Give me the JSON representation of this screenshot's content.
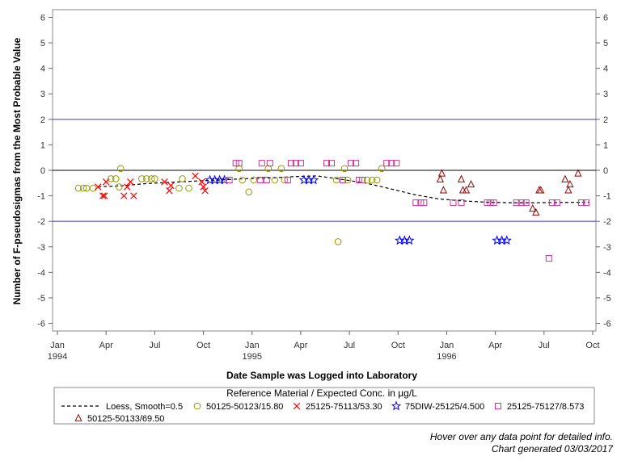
{
  "chart_data": {
    "type": "scatter",
    "xlabel": "Date Sample was Logged into Laboratory",
    "ylabel": "Number of F-pseudosigmas from the Most Probable Value",
    "ylim": [
      -6.3,
      6.3
    ],
    "yticks": [
      -6,
      -5,
      -4,
      -3,
      -2,
      -1,
      0,
      1,
      2,
      3,
      4,
      5,
      6
    ],
    "xlim": [
      -0.3,
      33.2
    ],
    "xticks": [
      {
        "x": 0,
        "label": "Jan",
        "year": "1994"
      },
      {
        "x": 3,
        "label": "Apr",
        "year": ""
      },
      {
        "x": 6,
        "label": "Jul",
        "year": ""
      },
      {
        "x": 9,
        "label": "Oct",
        "year": ""
      },
      {
        "x": 12,
        "label": "Jan",
        "year": "1995"
      },
      {
        "x": 15,
        "label": "Apr",
        "year": ""
      },
      {
        "x": 18,
        "label": "Jul",
        "year": ""
      },
      {
        "x": 21,
        "label": "Oct",
        "year": ""
      },
      {
        "x": 24,
        "label": "Jan",
        "year": "1996"
      },
      {
        "x": 27,
        "label": "Apr",
        "year": ""
      },
      {
        "x": 30,
        "label": "Jul",
        "year": ""
      },
      {
        "x": 33,
        "label": "Oct",
        "year": ""
      }
    ],
    "reference_lines": [
      {
        "y": 2,
        "color": "#3333cc"
      },
      {
        "y": 0,
        "color": "#000000"
      },
      {
        "y": -2,
        "color": "#3333cc"
      }
    ],
    "grid": false,
    "legend": {
      "title": "Reference Material / Expected Conc. in µg/L",
      "position": "bottom"
    },
    "loess": {
      "name": "Loess, Smooth=0.5",
      "color": "#000000",
      "points": [
        [
          2.5,
          -0.65
        ],
        [
          4,
          -0.6
        ],
        [
          5.5,
          -0.52
        ],
        [
          7,
          -0.47
        ],
        [
          8.5,
          -0.42
        ],
        [
          10,
          -0.38
        ],
        [
          11.5,
          -0.33
        ],
        [
          13,
          -0.3
        ],
        [
          14.5,
          -0.25
        ],
        [
          16,
          -0.22
        ],
        [
          17.5,
          -0.35
        ],
        [
          19,
          -0.5
        ],
        [
          20.5,
          -0.72
        ],
        [
          22,
          -0.95
        ],
        [
          23.5,
          -1.12
        ],
        [
          25,
          -1.2
        ],
        [
          26.5,
          -1.25
        ],
        [
          28,
          -1.27
        ],
        [
          29.5,
          -1.27
        ],
        [
          31,
          -1.26
        ],
        [
          32.8,
          -1.25
        ]
      ]
    },
    "series": [
      {
        "name": "50125-50123/15.80",
        "marker": "circle",
        "color": "#999900",
        "points": [
          [
            1.3,
            -0.7
          ],
          [
            1.6,
            -0.7
          ],
          [
            1.8,
            -0.7
          ],
          [
            2.2,
            -0.7
          ],
          [
            3.3,
            -0.33
          ],
          [
            3.6,
            -0.33
          ],
          [
            3.8,
            -0.65
          ],
          [
            3.9,
            0.07
          ],
          [
            5.2,
            -0.33
          ],
          [
            5.5,
            -0.33
          ],
          [
            5.8,
            -0.33
          ],
          [
            6.0,
            -0.33
          ],
          [
            7.5,
            -0.7
          ],
          [
            7.7,
            -0.33
          ],
          [
            8.1,
            -0.7
          ],
          [
            11.2,
            0.07
          ],
          [
            11.4,
            -0.38
          ],
          [
            11.8,
            -0.85
          ],
          [
            12.1,
            -0.38
          ],
          [
            13.0,
            0.07
          ],
          [
            13.4,
            -0.38
          ],
          [
            13.8,
            0.07
          ],
          [
            14.0,
            -0.38
          ],
          [
            17.2,
            -0.38
          ],
          [
            17.3,
            -2.8
          ],
          [
            17.7,
            0.07
          ],
          [
            17.9,
            -0.38
          ],
          [
            19.1,
            -0.38
          ],
          [
            19.4,
            -0.38
          ],
          [
            19.7,
            -0.38
          ],
          [
            20.0,
            0.07
          ]
        ]
      },
      {
        "name": "25125-75113/53.30",
        "marker": "x",
        "color": "#ff0000",
        "points": [
          [
            2.5,
            -0.65
          ],
          [
            2.8,
            -1.0
          ],
          [
            2.9,
            -1.0
          ],
          [
            3.0,
            -0.45
          ],
          [
            4.1,
            -1.0
          ],
          [
            4.3,
            -0.65
          ],
          [
            4.5,
            -0.45
          ],
          [
            4.7,
            -1.0
          ],
          [
            6.6,
            -0.45
          ],
          [
            6.9,
            -0.8
          ],
          [
            7.0,
            -0.6
          ],
          [
            8.5,
            -0.22
          ],
          [
            8.9,
            -0.45
          ],
          [
            9.0,
            -0.65
          ],
          [
            9.1,
            -0.8
          ]
        ]
      },
      {
        "name": "75DIW-25125/4.500",
        "marker": "star",
        "color": "#0000ff",
        "points": [
          [
            9.4,
            -0.38
          ],
          [
            9.7,
            -0.38
          ],
          [
            10.0,
            -0.38
          ],
          [
            10.3,
            -0.38
          ],
          [
            15.2,
            -0.38
          ],
          [
            15.5,
            -0.38
          ],
          [
            15.8,
            -0.38
          ],
          [
            21.1,
            -2.75
          ],
          [
            21.4,
            -2.75
          ],
          [
            21.7,
            -2.75
          ],
          [
            27.1,
            -2.75
          ],
          [
            27.4,
            -2.75
          ],
          [
            27.7,
            -2.75
          ]
        ]
      },
      {
        "name": "25125-75127/8.573",
        "marker": "square",
        "color": "#cc3399",
        "points": [
          [
            10.6,
            -0.38
          ],
          [
            11.0,
            0.28
          ],
          [
            11.2,
            0.28
          ],
          [
            12.5,
            -0.38
          ],
          [
            12.6,
            0.28
          ],
          [
            12.9,
            -0.38
          ],
          [
            13.1,
            0.28
          ],
          [
            14.2,
            -0.38
          ],
          [
            14.4,
            0.28
          ],
          [
            14.7,
            0.28
          ],
          [
            15.0,
            0.28
          ],
          [
            16.6,
            0.28
          ],
          [
            16.9,
            0.28
          ],
          [
            17.6,
            -0.38
          ],
          [
            18.1,
            0.28
          ],
          [
            18.4,
            0.28
          ],
          [
            18.6,
            -0.38
          ],
          [
            18.8,
            -0.38
          ],
          [
            20.3,
            0.28
          ],
          [
            20.6,
            0.28
          ],
          [
            20.9,
            0.28
          ],
          [
            22.1,
            -1.27
          ],
          [
            22.4,
            -1.27
          ],
          [
            22.6,
            -1.27
          ],
          [
            24.4,
            -1.27
          ],
          [
            24.9,
            -1.27
          ],
          [
            26.5,
            -1.27
          ],
          [
            26.7,
            -1.27
          ],
          [
            26.9,
            -1.27
          ],
          [
            28.3,
            -1.27
          ],
          [
            28.6,
            -1.27
          ],
          [
            28.9,
            -1.27
          ],
          [
            30.3,
            -3.45
          ],
          [
            30.5,
            -1.27
          ],
          [
            30.8,
            -1.27
          ],
          [
            32.3,
            -1.27
          ],
          [
            32.6,
            -1.27
          ]
        ]
      },
      {
        "name": "50125-50133/69.50",
        "marker": "triangle",
        "color": "#990000",
        "points": [
          [
            23.6,
            -0.35
          ],
          [
            23.7,
            -0.12
          ],
          [
            23.8,
            -0.78
          ],
          [
            24.9,
            -0.35
          ],
          [
            25.0,
            -0.78
          ],
          [
            25.2,
            -0.78
          ],
          [
            25.5,
            -0.55
          ],
          [
            29.3,
            -1.5
          ],
          [
            29.5,
            -1.65
          ],
          [
            29.7,
            -0.78
          ],
          [
            29.8,
            -0.78
          ],
          [
            31.3,
            -0.35
          ],
          [
            31.5,
            -0.78
          ],
          [
            31.6,
            -0.55
          ],
          [
            32.1,
            -0.12
          ]
        ]
      }
    ]
  },
  "footer": {
    "hover_note": "Hover over any data point for detailed info.",
    "generated": "Chart generated 03/03/2017"
  }
}
